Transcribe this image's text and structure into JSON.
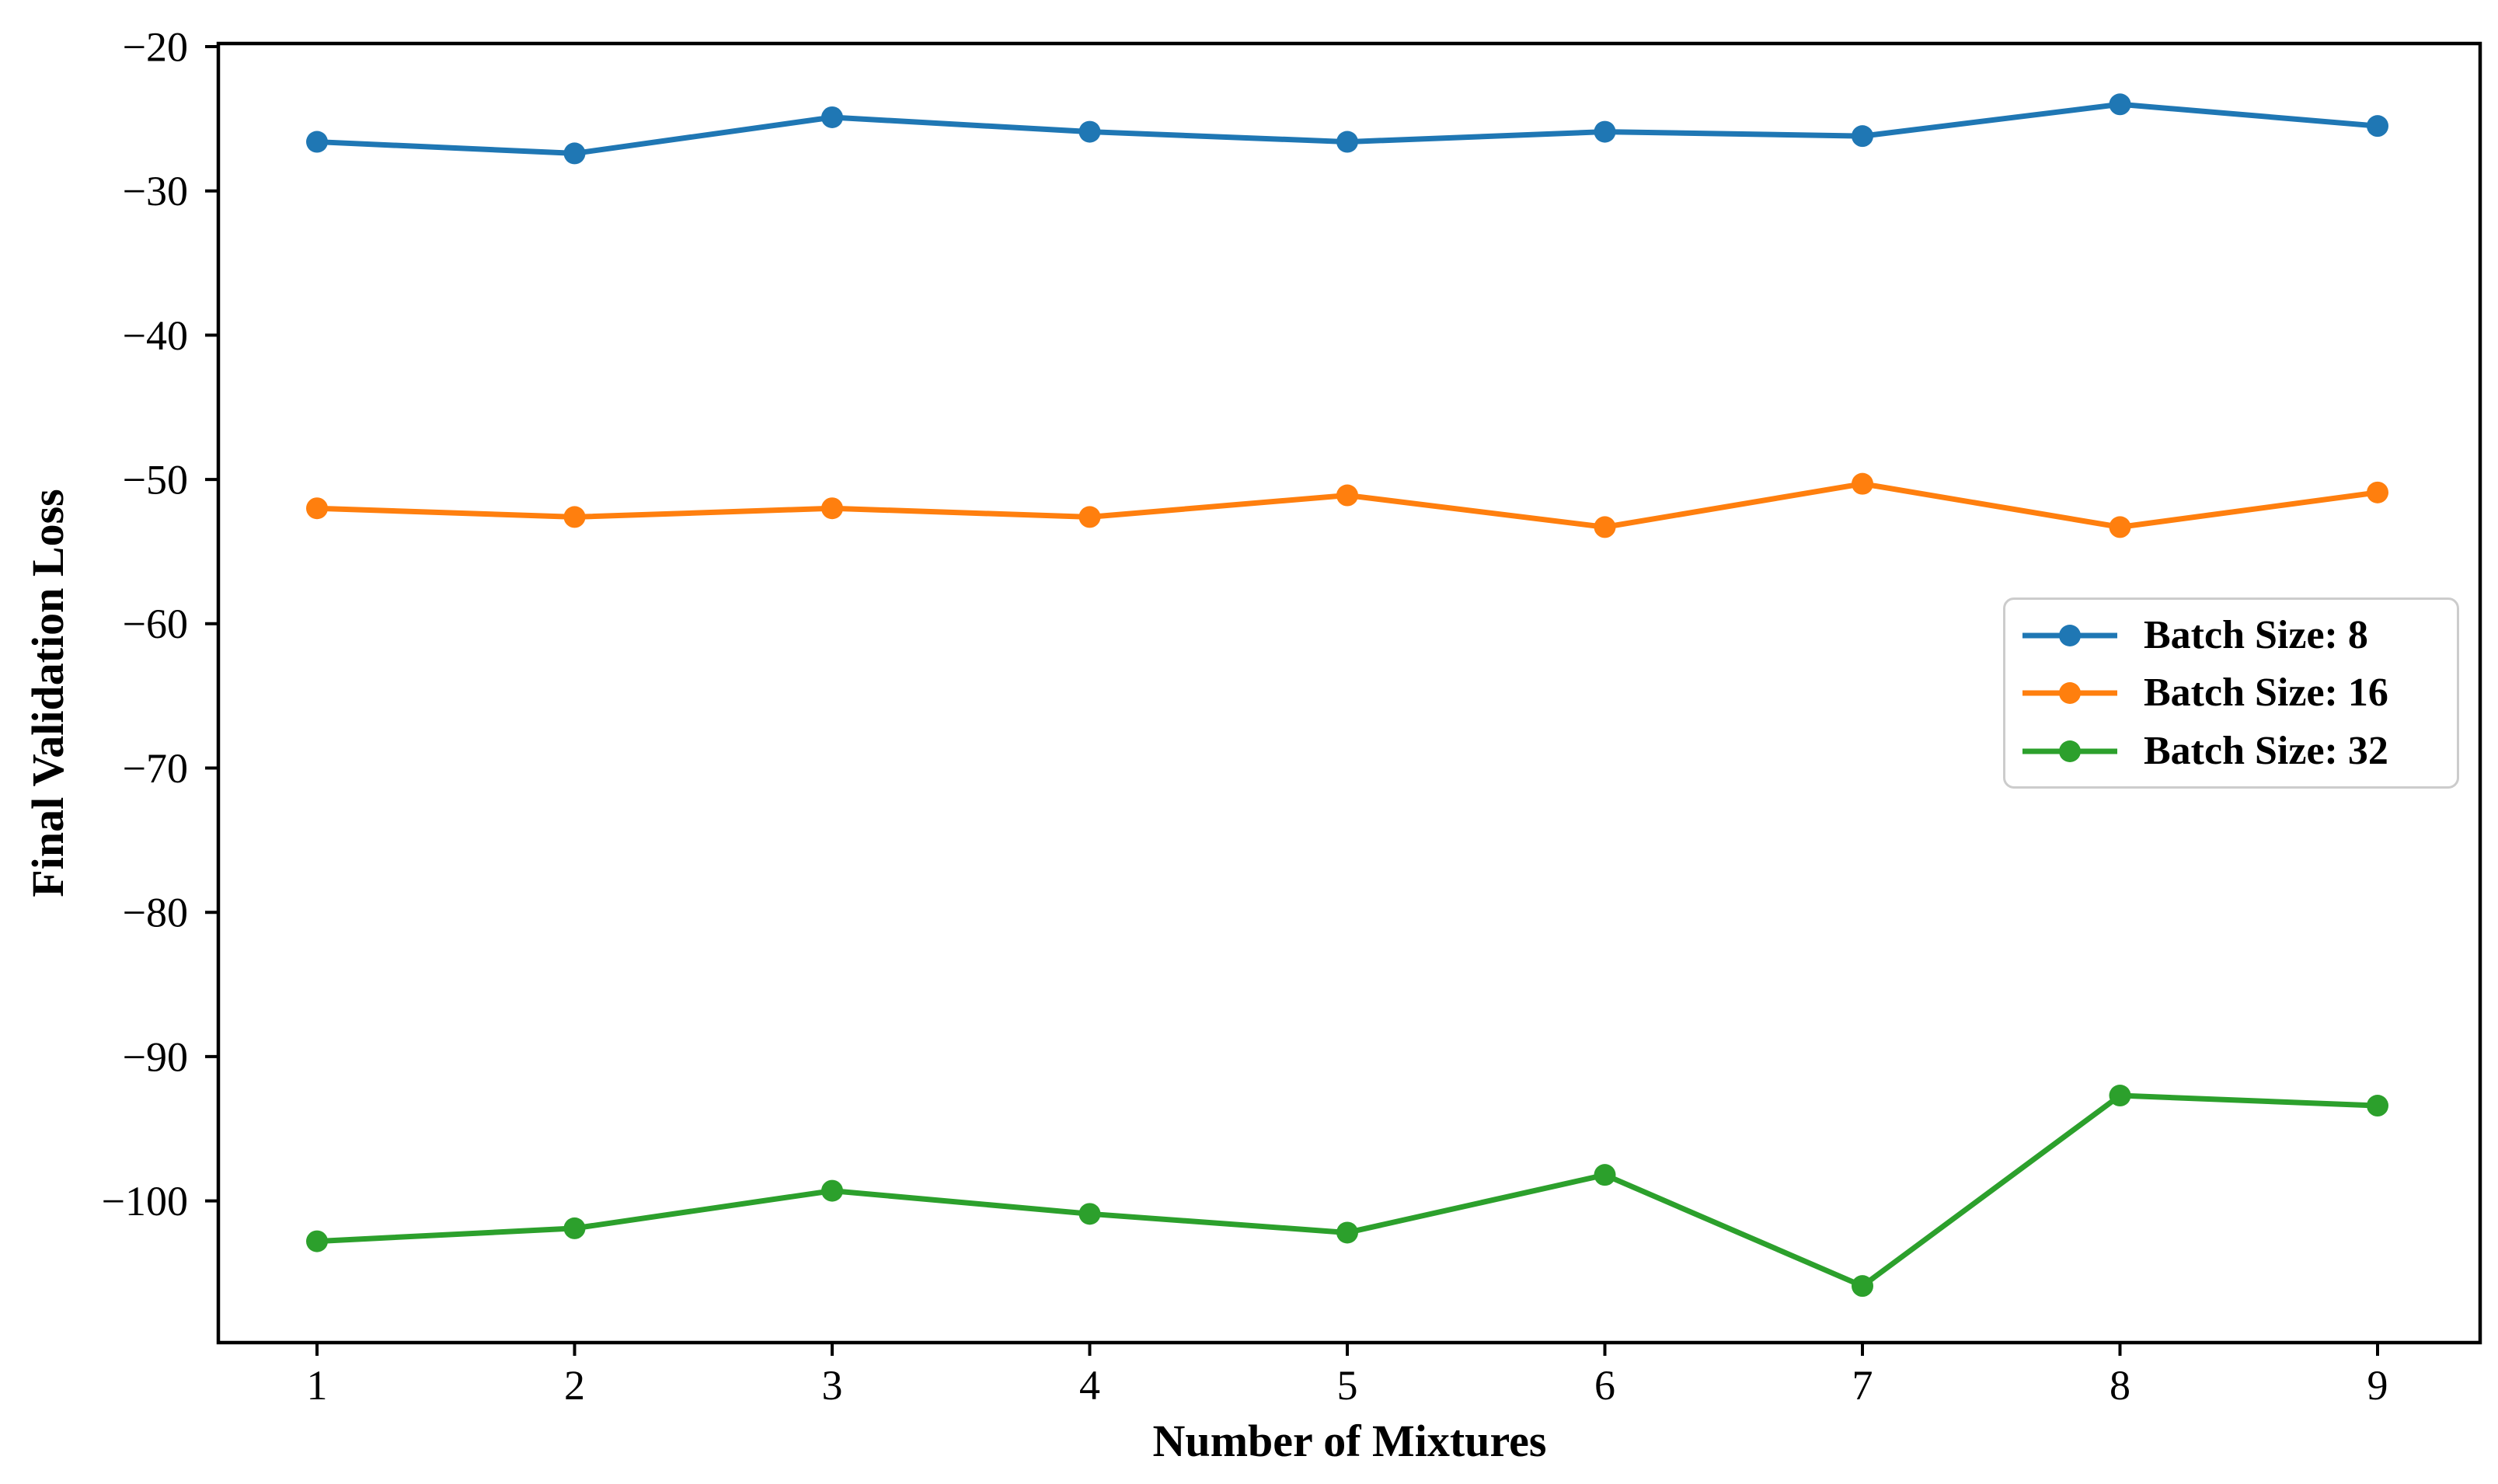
{
  "figure": {
    "background": "#ffffff",
    "text_color": "#000000",
    "spine_color": "#000000"
  },
  "chart_data": {
    "type": "line",
    "title": "",
    "xlabel": "Number of Mixtures",
    "ylabel": "Final Validation Loss",
    "x": [
      1,
      2,
      3,
      4,
      5,
      6,
      7,
      8,
      9
    ],
    "x_tick_labels": [
      "1",
      "2",
      "3",
      "4",
      "5",
      "6",
      "7",
      "8",
      "9"
    ],
    "y_tick_values": [
      -20,
      -30,
      -40,
      -50,
      -60,
      -70,
      -80,
      -90,
      -100
    ],
    "y_tick_labels": [
      "−20",
      "−30",
      "−40",
      "−50",
      "−60",
      "−70",
      "−80",
      "−90",
      "−100"
    ],
    "xlim": [
      0.6,
      9.4
    ],
    "ylim": [
      -109.8,
      -19.7
    ],
    "grid": false,
    "legend": {
      "position": "center right",
      "entries": [
        "Batch Size: 8",
        "Batch Size: 16",
        "Batch Size: 32"
      ]
    },
    "series": [
      {
        "name": "Batch Size: 8",
        "color": "#1f77b4",
        "marker": "circle",
        "values": [
          -26.6,
          -27.4,
          -24.9,
          -25.9,
          -26.6,
          -25.9,
          -26.2,
          -24.0,
          -25.5
        ]
      },
      {
        "name": "Batch Size: 16",
        "color": "#ff7f0e",
        "marker": "circle",
        "values": [
          -52.0,
          -52.6,
          -52.0,
          -52.6,
          -51.1,
          -53.3,
          -50.3,
          -53.3,
          -50.9
        ]
      },
      {
        "name": "Batch Size: 32",
        "color": "#2ca02c",
        "marker": "circle",
        "values": [
          -102.8,
          -101.9,
          -99.3,
          -100.9,
          -102.2,
          -98.2,
          -105.9,
          -92.7,
          -93.4
        ]
      }
    ]
  }
}
